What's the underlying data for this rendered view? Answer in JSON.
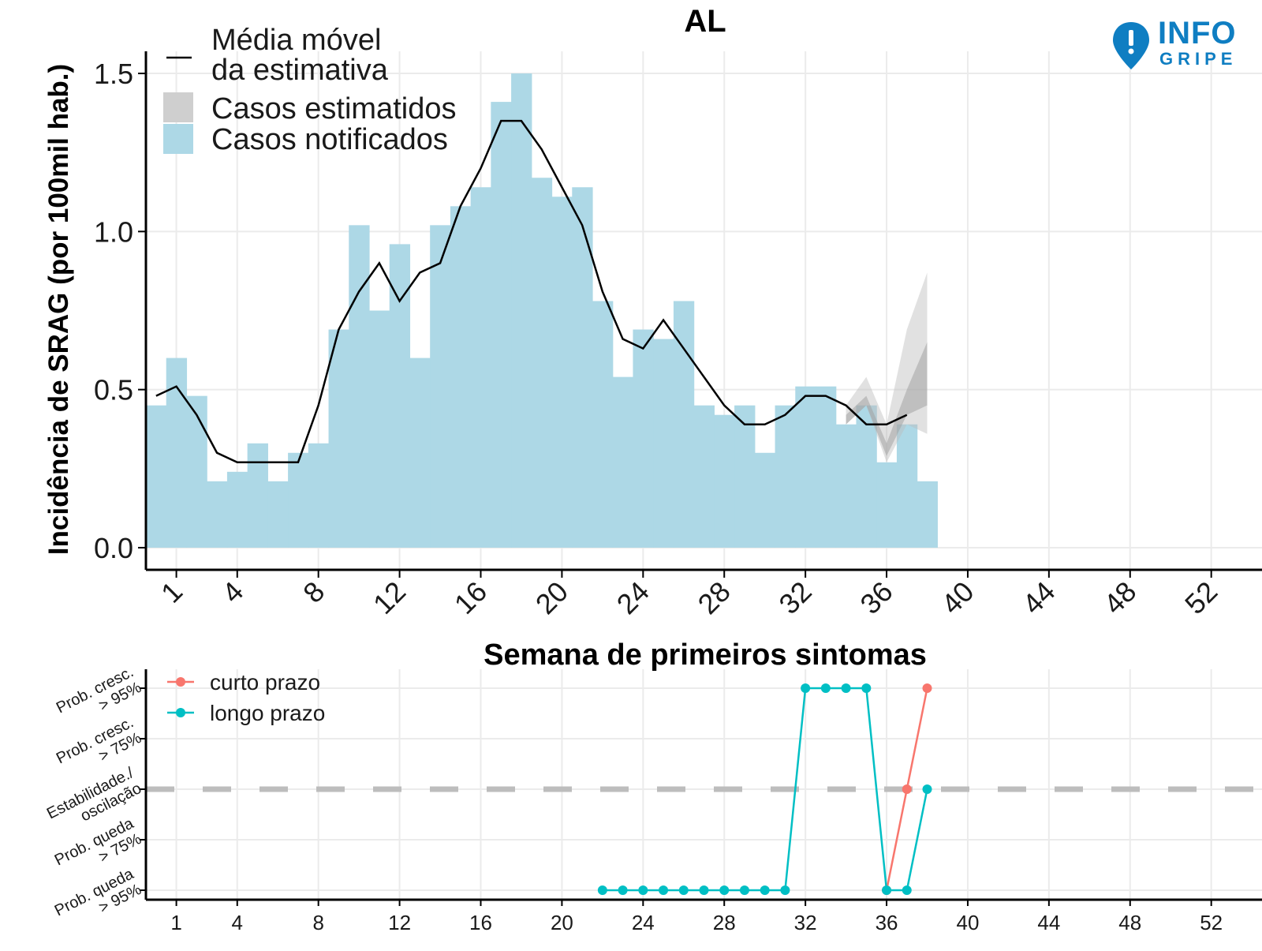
{
  "branding": {
    "logo_top": "INFO",
    "logo_bottom": "GRIPE",
    "brand_color": "#0f7ec2"
  },
  "chart_data": [
    {
      "type": "bar",
      "title": "AL",
      "xlabel": "Semana de primeiros sintomas",
      "ylabel": "Incidência de SRAG (por 100mil hab.)",
      "xlim": [
        -0.5,
        54.5
      ],
      "ylim": [
        -0.07,
        1.57
      ],
      "xticks": [
        1,
        4,
        8,
        12,
        16,
        20,
        24,
        28,
        32,
        36,
        40,
        44,
        48,
        52
      ],
      "yticks": [
        0.0,
        0.5,
        1.0,
        1.5
      ],
      "ytick_labels": [
        "0.0",
        "0.5",
        "1.0",
        "1.5"
      ],
      "grid": true,
      "legend_position": "top-left",
      "legend": {
        "line": "Média móvel\nda estimativa",
        "band": "Casos estimatidos",
        "bars": "Casos notificados"
      },
      "colors": {
        "bars": "#add8e6",
        "band": "#cfcfcf",
        "line": "#000000"
      },
      "bars": {
        "name": "Casos notificados",
        "weeks": [
          0,
          1,
          2,
          3,
          4,
          5,
          6,
          7,
          8,
          9,
          10,
          11,
          12,
          13,
          14,
          15,
          16,
          17,
          18,
          19,
          20,
          21,
          22,
          23,
          24,
          25,
          26,
          27,
          28,
          29,
          30,
          31,
          32,
          33,
          34,
          35,
          36,
          37,
          38
        ],
        "values": [
          0.45,
          0.6,
          0.48,
          0.21,
          0.24,
          0.33,
          0.21,
          0.3,
          0.33,
          0.69,
          1.02,
          0.75,
          0.96,
          0.6,
          1.02,
          1.08,
          1.14,
          1.41,
          1.5,
          1.17,
          1.11,
          1.14,
          0.78,
          0.54,
          0.69,
          0.66,
          0.78,
          0.45,
          0.42,
          0.45,
          0.3,
          0.45,
          0.51,
          0.51,
          0.39,
          0.45,
          0.27,
          0.39,
          0.21
        ]
      },
      "moving_average": {
        "name": "Média móvel da estimativa",
        "weeks": [
          0,
          1,
          2,
          3,
          4,
          5,
          6,
          7,
          8,
          9,
          10,
          11,
          12,
          13,
          14,
          15,
          16,
          17,
          18,
          19,
          20,
          21,
          22,
          23,
          24,
          25,
          26,
          27,
          28,
          29,
          30,
          31,
          32,
          33,
          34,
          35,
          36,
          37
        ],
        "values": [
          0.48,
          0.51,
          0.42,
          0.3,
          0.27,
          0.27,
          0.27,
          0.27,
          0.45,
          0.69,
          0.81,
          0.9,
          0.78,
          0.87,
          0.9,
          1.08,
          1.2,
          1.35,
          1.35,
          1.26,
          1.14,
          1.02,
          0.81,
          0.66,
          0.63,
          0.72,
          0.63,
          0.54,
          0.45,
          0.39,
          0.39,
          0.42,
          0.48,
          0.48,
          0.45,
          0.39,
          0.39,
          0.42
        ]
      },
      "estimate_band": {
        "name": "Casos estimatidos",
        "weeks": [
          34,
          35,
          36,
          37,
          38
        ],
        "outer_low": [
          0.39,
          0.45,
          0.27,
          0.39,
          0.36
        ],
        "outer_high": [
          0.45,
          0.54,
          0.39,
          0.69,
          0.87
        ],
        "inner_low": [
          0.39,
          0.45,
          0.29,
          0.42,
          0.45
        ],
        "inner_high": [
          0.42,
          0.48,
          0.33,
          0.5,
          0.65
        ]
      }
    },
    {
      "type": "line",
      "title": "",
      "xlabel": "",
      "ylabel": "",
      "xlim": [
        -0.5,
        54.5
      ],
      "xticks": [
        1,
        4,
        8,
        12,
        16,
        20,
        24,
        28,
        32,
        36,
        40,
        44,
        48,
        52
      ],
      "yticks": [
        0,
        1,
        2,
        3,
        4
      ],
      "ytick_labels": [
        "Prob. queda\n> 95%",
        "Prob. queda\n> 75%",
        "Estabilidade./\noscilação",
        "Prob. cresc.\n> 75%",
        "Prob. cresc.\n> 95%"
      ],
      "reference_line": 2,
      "grid": true,
      "legend_position": "top-left",
      "series": [
        {
          "name": "curto prazo",
          "color": "#f8766d",
          "x": [
            36,
            37,
            38
          ],
          "y": [
            0,
            2,
            4
          ]
        },
        {
          "name": "longo prazo",
          "color": "#00bfc4",
          "x": [
            22,
            23,
            24,
            25,
            26,
            27,
            28,
            29,
            30,
            31,
            32,
            33,
            34,
            35,
            36,
            37,
            38
          ],
          "y": [
            0,
            0,
            0,
            0,
            0,
            0,
            0,
            0,
            0,
            0,
            4,
            4,
            4,
            4,
            0,
            0,
            2
          ]
        }
      ]
    }
  ]
}
